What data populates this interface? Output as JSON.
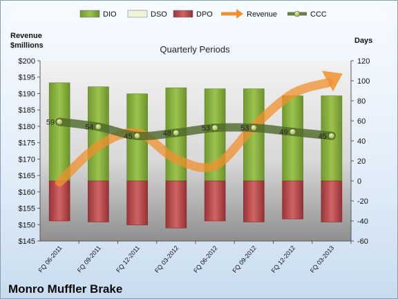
{
  "chart_data": {
    "type": "bar",
    "title": "Quarterly Periods",
    "company": "Monro Muffler Brake",
    "left_axis_title": [
      "Revenue",
      "$millions"
    ],
    "right_axis_title": "Days",
    "categories": [
      "FQ 06-2011",
      "FQ 09-2011",
      "FQ 12-2011",
      "FQ 03-2012",
      "FQ 06-2012",
      "FQ 09-2012",
      "FQ 12-2012",
      "FQ 03-2013"
    ],
    "left_axis": {
      "min": 145,
      "max": 200,
      "step": 5,
      "prefix": "$"
    },
    "right_axis": {
      "min": -60,
      "max": 120,
      "step": 20
    },
    "grid": false,
    "legend_position": "top",
    "series": [
      {
        "name": "DIO",
        "axis": "right",
        "kind": "stacked-bar",
        "color": "#7fa43a",
        "values": [
          98,
          94,
          87,
          93,
          92,
          92,
          85,
          85
        ]
      },
      {
        "name": "DSO",
        "axis": "right",
        "kind": "stacked-bar",
        "color": "#eef4d8",
        "values": [
          0,
          0,
          0,
          0,
          0,
          0,
          0,
          0
        ]
      },
      {
        "name": "DPO",
        "axis": "right",
        "kind": "bar-negative",
        "color": "#b04a4c",
        "values": [
          -40,
          -41,
          -44,
          -47,
          -40,
          -41,
          -38,
          -41
        ]
      },
      {
        "name": "Revenue",
        "axis": "left",
        "kind": "arrow-line",
        "color": "#f0902e",
        "values": [
          163,
          174,
          178,
          170,
          168,
          180,
          190,
          194
        ]
      },
      {
        "name": "CCC",
        "axis": "right",
        "kind": "line-markers",
        "color": "#4f6a2c",
        "values": [
          59,
          54,
          45,
          48,
          53,
          53,
          49,
          45
        ],
        "labels": [
          "59",
          "54",
          "45",
          "48",
          "53",
          "53",
          "49",
          "45"
        ]
      }
    ]
  }
}
